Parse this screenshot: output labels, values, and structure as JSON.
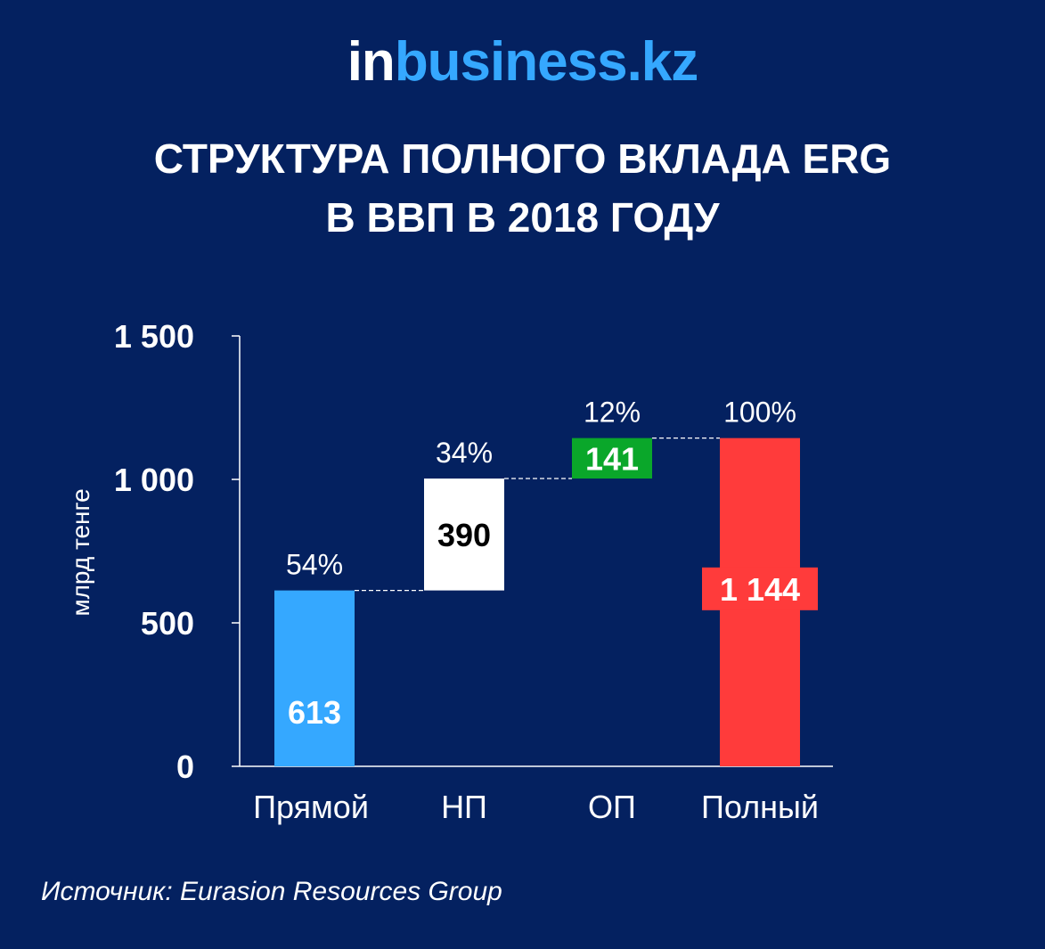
{
  "logo": {
    "part1": "in",
    "part2": "business.kz"
  },
  "title": {
    "line1": "СТРУКТУРА ПОЛНОГО ВКЛАДА ERG",
    "line2": "В ВВП В 2018 ГОДУ"
  },
  "source": "Источник: Eurasion Resources Group",
  "chart_data": {
    "type": "bar",
    "subtype": "waterfall",
    "ylabel": "млрд тенге",
    "ylim": [
      0,
      1500
    ],
    "yticks": [
      0,
      500,
      1000,
      1500
    ],
    "ytick_labels": [
      "0",
      "500",
      "1 000",
      "1 500"
    ],
    "categories": [
      "Прямой",
      "НП",
      "ОП",
      "Полный"
    ],
    "values": [
      613,
      390,
      141,
      1144
    ],
    "bases": [
      0,
      613,
      1003,
      0
    ],
    "value_labels": [
      "613",
      "390",
      "141",
      "1 144"
    ],
    "percent_labels": [
      "54%",
      "34%",
      "12%",
      "100%"
    ],
    "colors": [
      "#35a8ff",
      "#ffffff",
      "#0aa72a",
      "#ff3b3b"
    ],
    "label_colors": [
      "#ffffff",
      "#000000",
      "#ffffff",
      "#ffffff"
    ],
    "axis_color": "#ffffff",
    "grid": false,
    "legend": "none"
  }
}
